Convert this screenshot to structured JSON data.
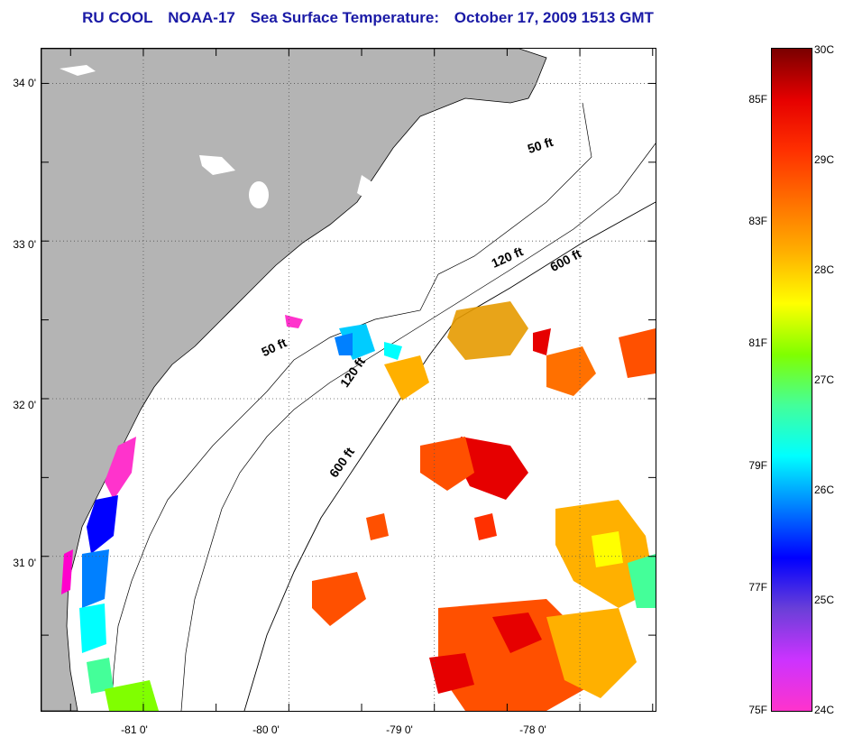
{
  "title": {
    "source": "RU COOL",
    "satellite": "NOAA-17",
    "product": "Sea Surface Temperature:",
    "date": "October 17, 2009 1513 GMT"
  },
  "map": {
    "lat_labels": [
      "34 0'",
      "33 0'",
      "32 0'",
      "31 0'"
    ],
    "lon_labels": [
      "-81 0'",
      "-80 0'",
      "-79 0'",
      "-78 0'"
    ],
    "lat_range": [
      30.02,
      34.22
    ],
    "lon_range": [
      -81.7,
      -77.48
    ],
    "lat_grid": [
      34,
      33,
      32,
      31
    ],
    "lon_grid": [
      -81,
      -80,
      -79,
      -78
    ],
    "land_color": "#b4b4b4",
    "grid_style": "dotted",
    "isobath_labels": [
      {
        "text": "50 ft"
      },
      {
        "text": "120 ft"
      },
      {
        "text": "600 ft"
      },
      {
        "text": "50 ft"
      },
      {
        "text": "120 ft"
      },
      {
        "text": "600 ft"
      }
    ]
  },
  "colorbar": {
    "fahrenheit_labels": [
      "85F",
      "83F",
      "81F",
      "79F",
      "77F",
      "75F"
    ],
    "celsius_labels": [
      "30C",
      "29C",
      "28C",
      "27C",
      "26C",
      "25C",
      "24C"
    ],
    "range_c": [
      24,
      30
    ],
    "colors": [
      "#ff33cc",
      "#cc33ff",
      "#6a3fd8",
      "#0000ff",
      "#0080ff",
      "#00ffff",
      "#44ff99",
      "#80ff00",
      "#ffff00",
      "#ffb000",
      "#ff7000",
      "#ff3000",
      "#e60000",
      "#7a0000"
    ]
  }
}
